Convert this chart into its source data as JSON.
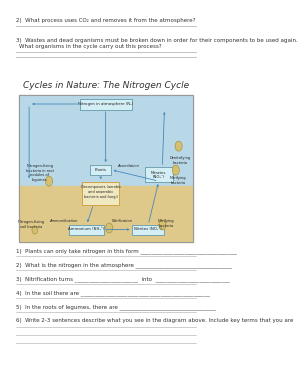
{
  "background_color": "#ffffff",
  "top_questions": [
    {
      "num": "2)",
      "text": "What process uses CO₂ and removes it from the atmosphere?",
      "lines": 1
    },
    {
      "num": "3)",
      "text": "Wastes and dead organisms must be broken down in order for their components to be used again.",
      "text2": "What organisms in the cycle carry out this process?",
      "lines": 2
    }
  ],
  "diagram_title": "Cycles in Nature: The Nitrogen Cycle",
  "diagram_bg_soil": "#dfc98a",
  "diagram_bg_sky": "#b8d8e8",
  "diagram_border": "#aaaaaa",
  "diagram_box_bg": "#d4eef5",
  "diagram_box_border": "#6699aa",
  "decomp_box_bg": "#f0e8c0",
  "decomp_box_border": "#cc9933",
  "arrow_color": "#4488bb",
  "bottom_questions": [
    "1)  Plants can only take nitrogen in this form ___________________________________",
    "2)  What is the nitrogen in the atmosphere ___________________________________",
    "3)  Nitrification turns _______________________  into  ___________________________",
    "4)  In the soil there are _______________________________________________",
    "5)  In the roots of legumes, there are ___________________________________",
    "6)  Write 2-3 sentences describe what you see in the diagram above. Include key terms that you are"
  ],
  "line_color": "#aaaaaa",
  "text_color": "#333333",
  "question_font": 4.0,
  "title_font": 6.5,
  "diag_font": 2.8,
  "diag_label_font": 2.6
}
